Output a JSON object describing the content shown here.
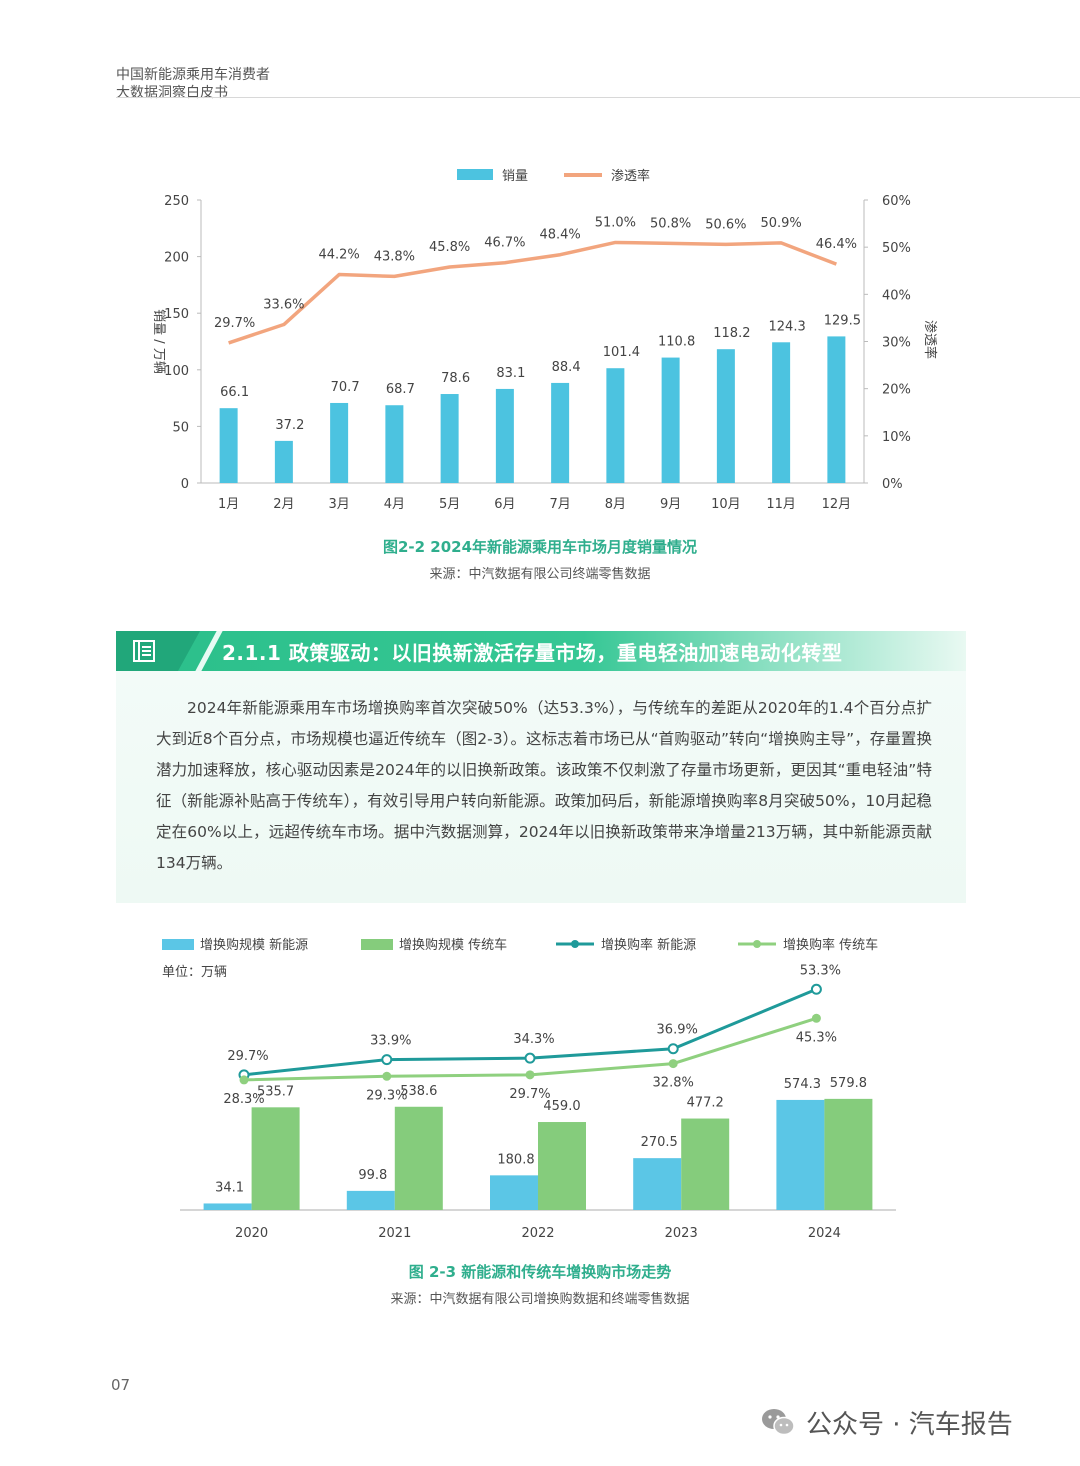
{
  "header": {
    "line1": "中国新能源乘用车消费者",
    "line2": "大数据洞察白皮书"
  },
  "chart1": {
    "caption": "图2-2 2024年新能源乘用车市场月度销量情况",
    "source": "来源：中汽数据有限公司终端零售数据"
  },
  "section": {
    "title": "2.1.1 政策驱动：以旧换新激活存量市场，重电轻油加速电动化转型",
    "paragraph": "2024年新能源乘用车市场增换购率首次突破50%（达53.3%），与传统车的差距从2020年的1.4个百分点扩大到近8个百分点，市场规模也逼近传统车（图2-3）。这标志着市场已从“首购驱动”转向“增换购主导”，存量置换潜力加速释放，核心驱动因素是2024年的以旧换新政策。该政策不仅刺激了存量市场更新，更因其“重电轻油”特征（新能源补贴高于传统车），有效引导用户转向新能源。政策加码后，新能源增换购率8月突破50%，10月起稳定在60%以上，远超传统车市场。据中汽数据测算，2024年以旧换新政策带来净增量213万辆，其中新能源贡献134万辆。"
  },
  "chart2": {
    "caption": "图 2-3 新能源和传统车增换购市场走势",
    "source": "来源：中汽数据有限公司增换购数据和终端零售数据",
    "unit": "单位：万辆"
  },
  "footer": {
    "page_number": "07",
    "brand": "公众号 · 汽车报告"
  },
  "chart_data": [
    {
      "type": "bar",
      "title": "图2-2 2024年新能源乘用车市场月度销量情况",
      "categories": [
        "1月",
        "2月",
        "3月",
        "4月",
        "5月",
        "6月",
        "7月",
        "8月",
        "9月",
        "10月",
        "11月",
        "12月"
      ],
      "series": [
        {
          "name": "销量",
          "axis": "left",
          "kind": "bar",
          "color": "#4cc3e0",
          "values": [
            66.1,
            37.2,
            70.7,
            68.7,
            78.6,
            83.1,
            88.4,
            101.4,
            110.8,
            118.2,
            124.3,
            129.5
          ]
        },
        {
          "name": "渗透率",
          "axis": "right",
          "kind": "line",
          "color": "#f2a57e",
          "values": [
            29.7,
            33.6,
            44.2,
            43.8,
            45.8,
            46.7,
            48.4,
            51.0,
            50.8,
            50.6,
            50.9,
            46.4
          ],
          "labels": [
            "29.7%",
            "33.6%",
            "44.2%",
            "43.8%",
            "45.8%",
            "46.7%",
            "48.4%",
            "51.0%",
            "50.8%",
            "50.6%",
            "50.9%",
            "46.4%"
          ]
        }
      ],
      "ylabel": "销量 / 万辆",
      "ylabel_right": "渗透率",
      "ylim": [
        0,
        250
      ],
      "ylim_right": [
        0,
        60
      ],
      "yticks": [
        "0",
        "50",
        "100",
        "150",
        "200",
        "250"
      ],
      "yticks_right": [
        "0%",
        "10%",
        "20%",
        "30%",
        "40%",
        "50%",
        "60%"
      ],
      "legend": "top-center"
    },
    {
      "type": "bar",
      "title": "图 2-3 新能源和传统车增换购市场走势",
      "categories": [
        "2020",
        "2021",
        "2022",
        "2023",
        "2024"
      ],
      "series": [
        {
          "name": "增换购规模 新能源",
          "kind": "bar",
          "color": "#5bc6e6",
          "values": [
            34.1,
            99.8,
            180.8,
            270.5,
            574.3
          ],
          "labels": [
            "34.1",
            "99.8",
            "180.8",
            "270.5",
            "574.3"
          ]
        },
        {
          "name": "增换购规模 传统车",
          "kind": "bar",
          "color": "#85cc7c",
          "values": [
            535.7,
            538.6,
            459.0,
            477.2,
            579.8
          ],
          "labels": [
            "535.7",
            "538.6",
            "459.0",
            "477.2",
            "579.8"
          ]
        },
        {
          "name": "增换购率 新能源",
          "kind": "line",
          "color": "#1f9a9a",
          "values": [
            29.7,
            33.9,
            34.3,
            36.9,
            53.3
          ],
          "labels": [
            "29.7%",
            "33.9%",
            "34.3%",
            "36.9%",
            "53.3%"
          ]
        },
        {
          "name": "增换购率 传统车",
          "kind": "line",
          "color": "#8fd07f",
          "values": [
            28.3,
            29.3,
            29.7,
            32.8,
            45.3
          ],
          "labels": [
            "28.3%",
            "29.3%",
            "29.7%",
            "32.8%",
            "45.3%"
          ]
        }
      ],
      "bar_ylim": [
        0,
        600
      ],
      "rate_ylim": [
        20,
        60
      ],
      "legend": "top"
    }
  ]
}
